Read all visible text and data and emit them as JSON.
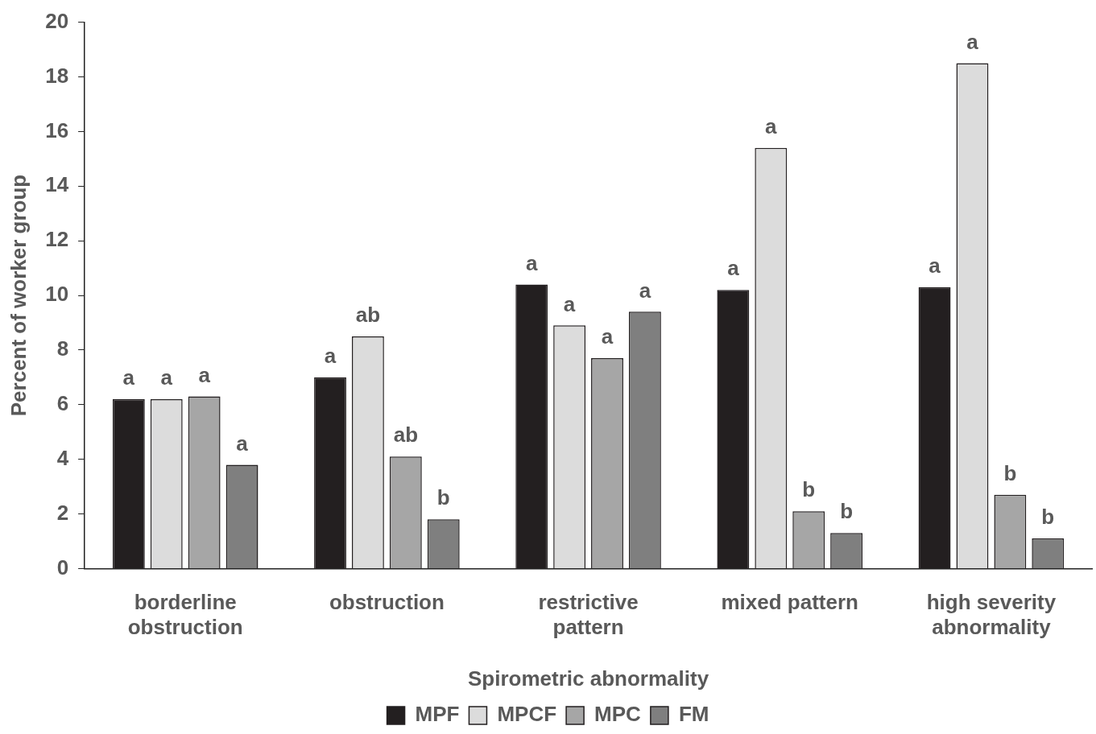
{
  "chart_data": {
    "type": "bar",
    "xlabel": "Spirometric abnormality",
    "ylabel": "Percent of worker group",
    "categories": [
      "borderline obstruction",
      "obstruction",
      "restrictive pattern",
      "mixed pattern",
      "high severity abnormality"
    ],
    "series": [
      {
        "name": "MPF",
        "color": "#231f20",
        "values": [
          6.2,
          7.0,
          10.4,
          10.2,
          10.3
        ],
        "value_labels": [
          "a",
          "a",
          "a",
          "a",
          "a"
        ]
      },
      {
        "name": "MPCF",
        "color": "#dcdcdc",
        "values": [
          6.2,
          8.5,
          8.9,
          15.4,
          18.5
        ],
        "value_labels": [
          "a",
          "ab",
          "a",
          "a",
          "a"
        ]
      },
      {
        "name": "MPC",
        "color": "#a6a6a6",
        "values": [
          6.3,
          4.1,
          7.7,
          2.1,
          2.7
        ],
        "value_labels": [
          "a",
          "ab",
          "a",
          "b",
          "b"
        ]
      },
      {
        "name": "FM",
        "color": "#7f7f7f",
        "values": [
          3.8,
          1.8,
          9.4,
          1.3,
          1.1
        ],
        "value_labels": [
          "a",
          "b",
          "a",
          "b",
          "b"
        ]
      }
    ],
    "ylim": [
      0,
      20
    ],
    "yticks": [
      0,
      2,
      4,
      6,
      8,
      10,
      12,
      14,
      16,
      18,
      20
    ],
    "grid": false,
    "legend": "bottom"
  }
}
